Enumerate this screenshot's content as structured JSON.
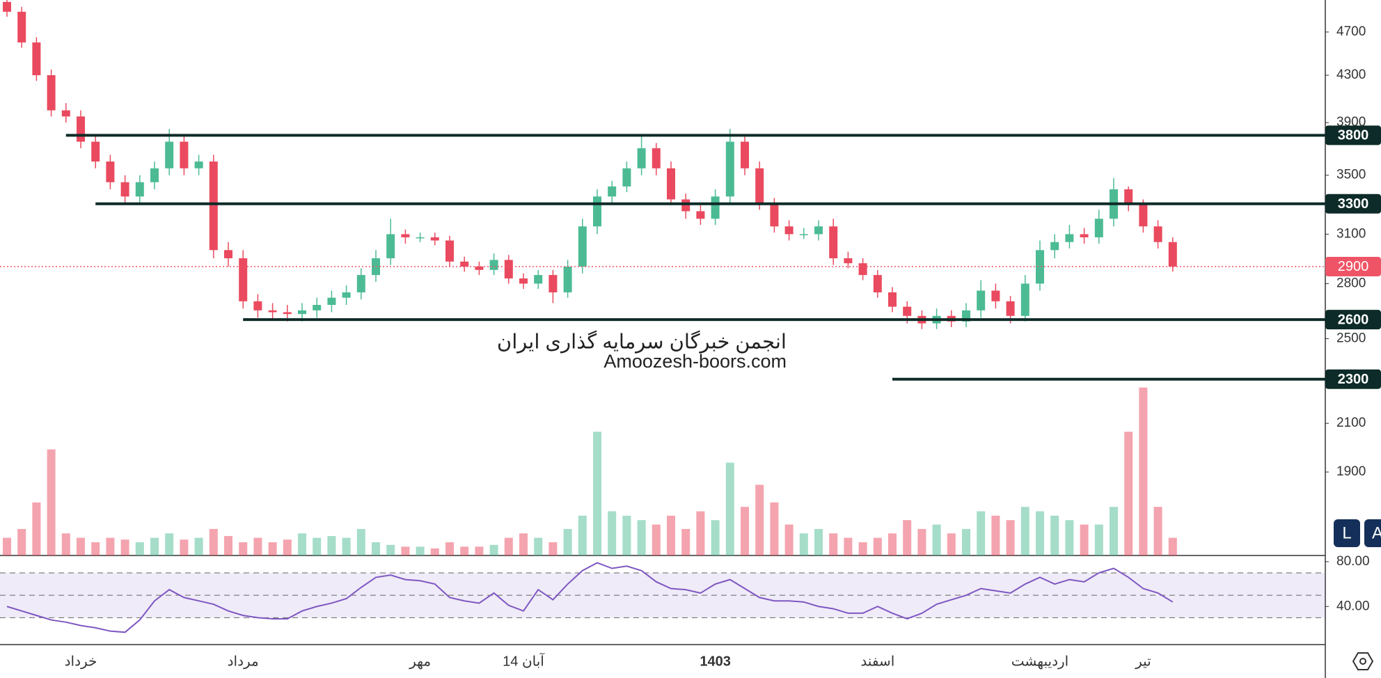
{
  "chart_data": {
    "type": "candlestick",
    "log_scale": true,
    "ylim": [
      1600,
      5020
    ],
    "yticks": [
      4700,
      4300,
      3900,
      3500,
      3100,
      2800,
      2500,
      2100,
      1900
    ],
    "categories": [
      null,
      null,
      null,
      null,
      null,
      "خرداد",
      null,
      null,
      null,
      null,
      null,
      null,
      null,
      null,
      null,
      null,
      "مرداد",
      null,
      null,
      null,
      null,
      null,
      null,
      null,
      null,
      null,
      null,
      null,
      "مهر",
      null,
      null,
      null,
      null,
      null,
      null,
      "14 آبان",
      null,
      null,
      null,
      null,
      null,
      null,
      null,
      null,
      null,
      null,
      null,
      null,
      "1403",
      null,
      null,
      null,
      null,
      null,
      null,
      null,
      null,
      null,
      null,
      "اسفند",
      null,
      null,
      null,
      null,
      null,
      null,
      null,
      null,
      null,
      null,
      "اردیبهشت",
      null,
      null,
      null,
      null,
      null,
      null,
      "تیر",
      null,
      null
    ],
    "bold_categories": [
      48
    ],
    "up_color": "#4cbb94",
    "down_color": "#ea4a5f",
    "open": [
      5000,
      4900,
      4600,
      4300,
      4000,
      3950,
      3750,
      3600,
      3450,
      3350,
      3450,
      3550,
      3750,
      3550,
      3600,
      3000,
      2950,
      2700,
      2650,
      2640,
      2630,
      2650,
      2680,
      2720,
      2750,
      2850,
      2950,
      3100,
      3080,
      3080,
      3060,
      2930,
      2900,
      2880,
      2940,
      2830,
      2800,
      2850,
      2750,
      2900,
      3150,
      3350,
      3420,
      3550,
      3700,
      3550,
      3330,
      3250,
      3200,
      3350,
      3750,
      3550,
      3300,
      3150,
      3100,
      3100,
      3150,
      2950,
      2920,
      2850,
      2750,
      2670,
      2620,
      2580,
      2620,
      2590,
      2650,
      2760,
      2700,
      2620,
      2800,
      3000,
      3050,
      3100,
      3080,
      3200,
      3400,
      3300,
      3150,
      3050
    ],
    "high": [
      5050,
      4950,
      4650,
      4350,
      4060,
      4000,
      3800,
      3650,
      3500,
      3500,
      3600,
      3850,
      3800,
      3650,
      3650,
      3050,
      3000,
      2740,
      2690,
      2680,
      2690,
      2720,
      2760,
      2790,
      2890,
      3000,
      3200,
      3130,
      3110,
      3110,
      3090,
      2960,
      2930,
      2980,
      2970,
      2860,
      2880,
      2880,
      2940,
      3200,
      3400,
      3460,
      3600,
      3800,
      3740,
      3600,
      3370,
      3290,
      3400,
      3850,
      3790,
      3600,
      3340,
      3190,
      3140,
      3190,
      3200,
      2990,
      2950,
      2880,
      2780,
      2700,
      2650,
      2660,
      2650,
      2690,
      2820,
      2800,
      2730,
      2850,
      3060,
      3100,
      3160,
      3140,
      3260,
      3480,
      3420,
      3330,
      3190,
      3080
    ],
    "low": [
      4850,
      4550,
      4250,
      3950,
      3900,
      3700,
      3550,
      3400,
      3300,
      3300,
      3400,
      3500,
      3500,
      3500,
      2950,
      2900,
      2660,
      2610,
      2600,
      2590,
      2590,
      2610,
      2640,
      2680,
      2710,
      2810,
      2910,
      3040,
      3050,
      3030,
      2900,
      2870,
      2850,
      2850,
      2800,
      2770,
      2770,
      2690,
      2720,
      2860,
      3100,
      3300,
      3380,
      3500,
      3500,
      3290,
      3200,
      3160,
      3160,
      3300,
      3500,
      3260,
      3110,
      3060,
      3070,
      3060,
      2910,
      2890,
      2820,
      2720,
      2640,
      2580,
      2550,
      2550,
      2560,
      2560,
      2610,
      2660,
      2580,
      2590,
      2760,
      2950,
      3010,
      3040,
      3040,
      3150,
      3250,
      3110,
      3010,
      2870
    ],
    "close": [
      4900,
      4600,
      4300,
      4000,
      3950,
      3750,
      3600,
      3450,
      3350,
      3450,
      3550,
      3750,
      3550,
      3600,
      3000,
      2950,
      2700,
      2650,
      2640,
      2630,
      2650,
      2680,
      2720,
      2750,
      2850,
      2950,
      3100,
      3080,
      3080,
      3060,
      2930,
      2900,
      2880,
      2940,
      2830,
      2800,
      2850,
      2750,
      2900,
      3150,
      3350,
      3420,
      3550,
      3700,
      3550,
      3330,
      3250,
      3200,
      3350,
      3750,
      3550,
      3300,
      3150,
      3100,
      3100,
      3150,
      2950,
      2920,
      2850,
      2750,
      2670,
      2620,
      2580,
      2620,
      2590,
      2650,
      2760,
      2700,
      2620,
      2800,
      3000,
      3050,
      3100,
      3080,
      3200,
      3400,
      3300,
      3150,
      3050,
      2900
    ],
    "volume_ylim": [
      0,
      200
    ],
    "volume": [
      20,
      30,
      60,
      120,
      25,
      20,
      15,
      20,
      18,
      15,
      20,
      25,
      18,
      20,
      30,
      22,
      15,
      20,
      15,
      18,
      25,
      20,
      22,
      20,
      30,
      15,
      12,
      10,
      10,
      8,
      15,
      10,
      10,
      12,
      20,
      25,
      20,
      15,
      30,
      45,
      140,
      50,
      45,
      40,
      35,
      45,
      30,
      50,
      40,
      105,
      55,
      80,
      60,
      35,
      25,
      30,
      25,
      20,
      15,
      20,
      25,
      40,
      30,
      35,
      25,
      30,
      50,
      45,
      40,
      55,
      50,
      45,
      40,
      35,
      35,
      55,
      140,
      190,
      55,
      20
    ],
    "levels": [
      {
        "value": 3800,
        "from_index": 4
      },
      {
        "value": 3300,
        "from_index": 6
      },
      {
        "value": 2600,
        "from_index": 16
      },
      {
        "value": 2300,
        "from_index": 60
      }
    ],
    "level_color": "#0d2b28",
    "last_price": 2900,
    "last_price_color": "#ef5466",
    "rsi": {
      "ylim": [
        6,
        85.5
      ],
      "yticks": [
        {
          "value": 80,
          "label": "80.00"
        },
        {
          "value": 40,
          "label": "40.00"
        }
      ],
      "lines": [
        30,
        50,
        70
      ],
      "color": "#7e57c2",
      "values": [
        40,
        36,
        32,
        28,
        26,
        23,
        21,
        18,
        17,
        28,
        45,
        55,
        48,
        45,
        42,
        36,
        32,
        30,
        29,
        29,
        36,
        40,
        43,
        47,
        57,
        66,
        68,
        64,
        63,
        60,
        48,
        45,
        43,
        52,
        41,
        36,
        55,
        46,
        60,
        72,
        79,
        74,
        76,
        72,
        62,
        56,
        55,
        52,
        60,
        64,
        56,
        48,
        45,
        45,
        44,
        40,
        38,
        34,
        34,
        40,
        34,
        29,
        34,
        42,
        46,
        50,
        56,
        54,
        52,
        60,
        66,
        60,
        64,
        62,
        70,
        74,
        66,
        56,
        52,
        44
      ]
    },
    "watermark": [
      "انجمن خبرگان سرمایه گذاری ایران",
      "Amoozesh-boors.com"
    ],
    "buttons": [
      "L",
      "A"
    ]
  }
}
